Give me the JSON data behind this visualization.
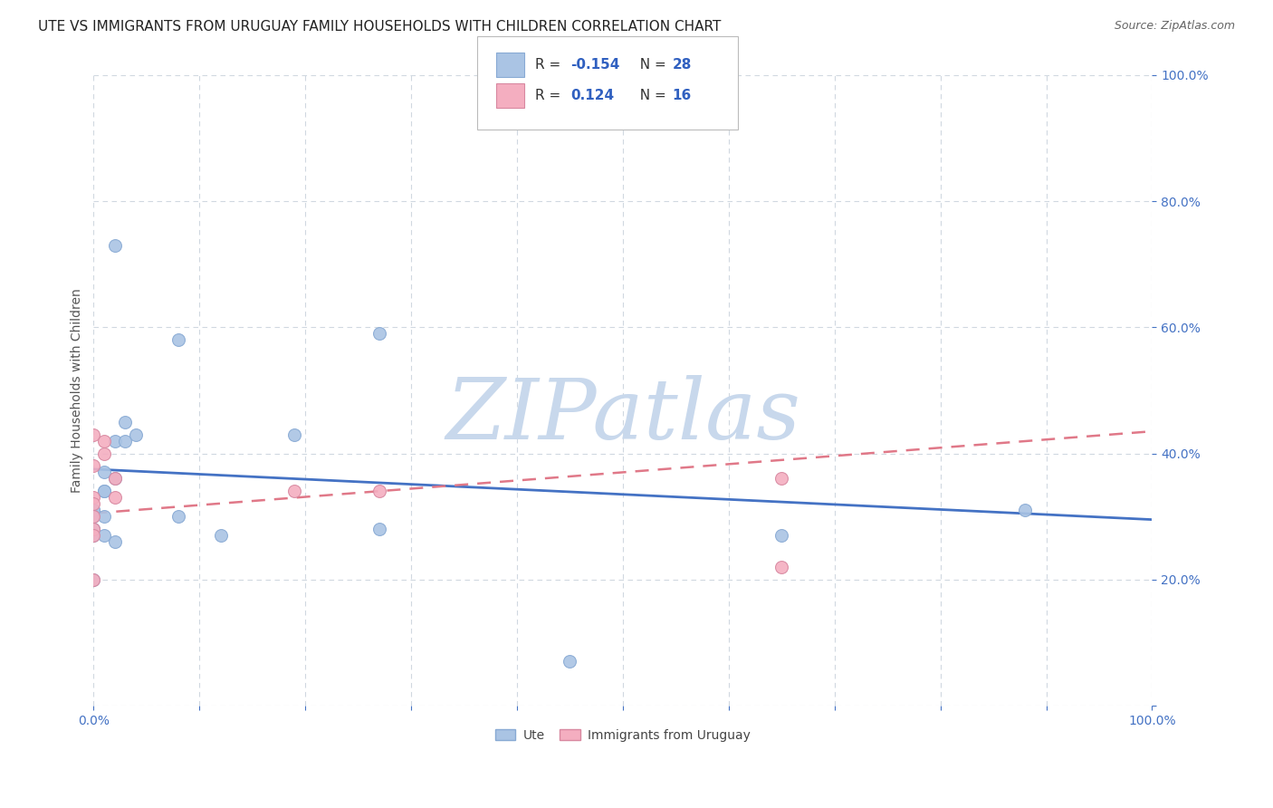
{
  "title": "UTE VS IMMIGRANTS FROM URUGUAY FAMILY HOUSEHOLDS WITH CHILDREN CORRELATION CHART",
  "source": "Source: ZipAtlas.com",
  "ylabel": "Family Households with Children",
  "xlim": [
    0.0,
    1.0
  ],
  "ylim": [
    0.0,
    1.0
  ],
  "background_color": "#ffffff",
  "grid_color": "#d0d8e0",
  "ute_color": "#aac4e4",
  "uru_color": "#f4aec0",
  "ute_line_color": "#4472c4",
  "uru_line_color": "#e07888",
  "ute_marker_edge": "#88aad4",
  "uru_marker_edge": "#d888a0",
  "ute_scatter_x": [
    0.02,
    0.01,
    0.0,
    0.0,
    0.0,
    0.0,
    0.0,
    0.0,
    0.0,
    0.01,
    0.01,
    0.02,
    0.02,
    0.03,
    0.03,
    0.04,
    0.01,
    0.01,
    0.02,
    0.08,
    0.08,
    0.12,
    0.19,
    0.27,
    0.27,
    0.45,
    0.65,
    0.88
  ],
  "ute_scatter_y": [
    0.73,
    0.37,
    0.31,
    0.31,
    0.3,
    0.28,
    0.28,
    0.27,
    0.2,
    0.34,
    0.34,
    0.36,
    0.42,
    0.42,
    0.45,
    0.43,
    0.3,
    0.27,
    0.26,
    0.58,
    0.3,
    0.27,
    0.43,
    0.59,
    0.28,
    0.07,
    0.27,
    0.31
  ],
  "uru_scatter_x": [
    0.0,
    0.0,
    0.0,
    0.0,
    0.0,
    0.0,
    0.0,
    0.0,
    0.01,
    0.01,
    0.02,
    0.02,
    0.19,
    0.27,
    0.65,
    0.65
  ],
  "uru_scatter_y": [
    0.43,
    0.38,
    0.33,
    0.32,
    0.3,
    0.28,
    0.27,
    0.2,
    0.42,
    0.4,
    0.36,
    0.33,
    0.34,
    0.34,
    0.36,
    0.22
  ],
  "ute_trend_x": [
    0.0,
    1.0
  ],
  "ute_trend_y": [
    0.375,
    0.295
  ],
  "uru_trend_x": [
    0.0,
    1.0
  ],
  "uru_trend_y": [
    0.305,
    0.435
  ],
  "watermark": "ZIPatlas",
  "watermark_color": "#c8d8ec",
  "marker_size": 100,
  "title_fontsize": 11,
  "tick_color": "#4472c4",
  "tick_fontsize": 10,
  "ylabel_fontsize": 10,
  "ylabel_color": "#555555"
}
